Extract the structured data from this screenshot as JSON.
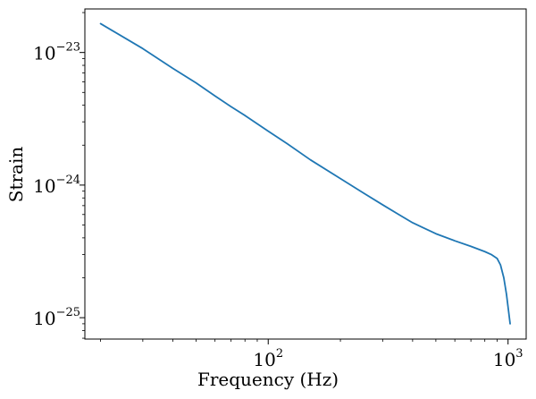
{
  "chart_data": {
    "type": "line",
    "title": "",
    "xlabel": "Frequency (Hz)",
    "ylabel": "Strain",
    "xscale": "log",
    "yscale": "log",
    "xlim": [
      17.2,
      1190
    ],
    "ylim": [
      6.9e-26,
      2.13e-23
    ],
    "grid": false,
    "x_ticks": [
      {
        "value": 100,
        "base": "10",
        "exp": "2"
      },
      {
        "value": 1000,
        "base": "10",
        "exp": "3"
      }
    ],
    "y_ticks": [
      {
        "value": 1e-25,
        "base": "10",
        "exp": "−25"
      },
      {
        "value": 1e-24,
        "base": "10",
        "exp": "−24"
      },
      {
        "value": 1e-23,
        "base": "10",
        "exp": "−23"
      }
    ],
    "series": [
      {
        "name": "strain",
        "color": "#1f77b4",
        "points": [
          [
            20,
            1.65e-23
          ],
          [
            30,
            1.07e-23
          ],
          [
            40,
            7.6e-24
          ],
          [
            50,
            5.9e-24
          ],
          [
            60,
            4.7e-24
          ],
          [
            70,
            3.9e-24
          ],
          [
            80,
            3.35e-24
          ],
          [
            100,
            2.55e-24
          ],
          [
            120,
            2.05e-24
          ],
          [
            150,
            1.55e-24
          ],
          [
            200,
            1.12e-24
          ],
          [
            250,
            8.7e-25
          ],
          [
            300,
            7.1e-25
          ],
          [
            350,
            6e-25
          ],
          [
            400,
            5.2e-25
          ],
          [
            500,
            4.3e-25
          ],
          [
            600,
            3.8e-25
          ],
          [
            700,
            3.45e-25
          ],
          [
            800,
            3.15e-25
          ],
          [
            850,
            3e-25
          ],
          [
            900,
            2.8e-25
          ],
          [
            930,
            2.5e-25
          ],
          [
            960,
            2e-25
          ],
          [
            985,
            1.5e-25
          ],
          [
            1005,
            1.12e-25
          ],
          [
            1020,
            9e-26
          ]
        ]
      }
    ]
  }
}
